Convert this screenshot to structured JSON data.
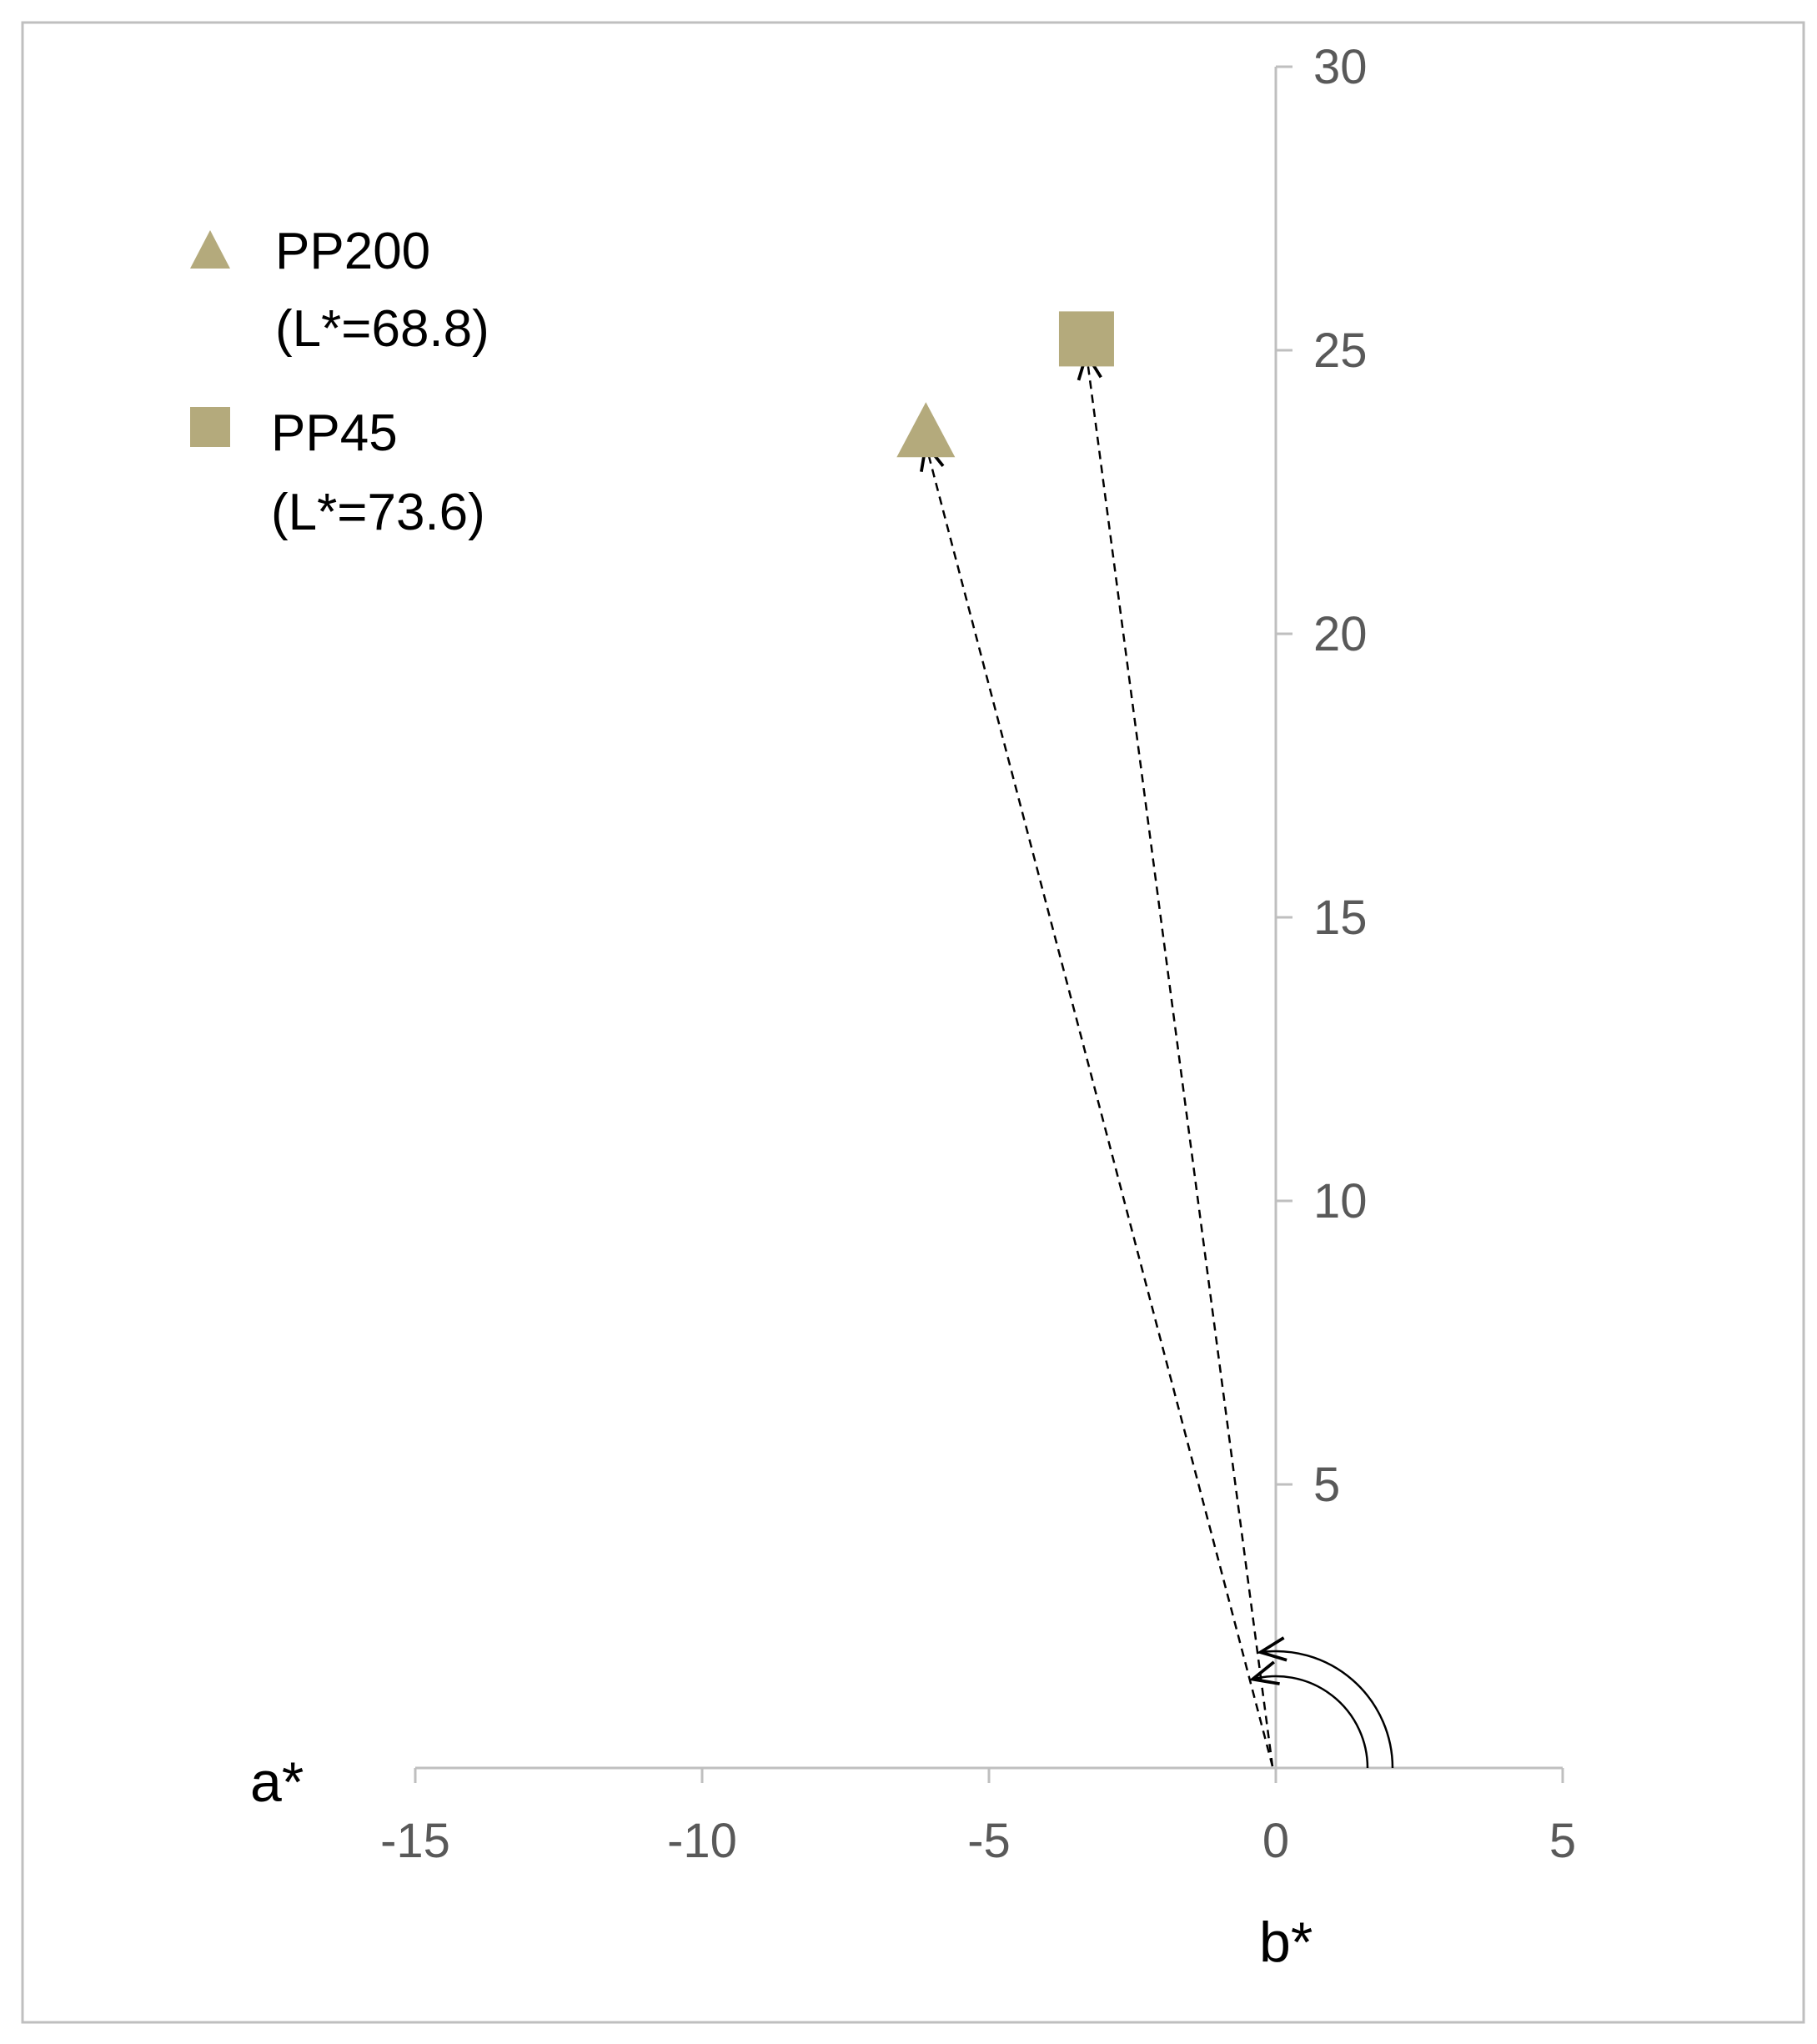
{
  "chart_data": {
    "type": "scatter",
    "title": "",
    "xlabel": "a*",
    "ylabel": "b*",
    "xlim": [
      -15,
      5
    ],
    "ylim": [
      0,
      30
    ],
    "x_ticks": [
      "-15",
      "-10",
      "-5",
      "0",
      "5"
    ],
    "y_ticks": [
      "5",
      "10",
      "15",
      "20",
      "25",
      "30"
    ],
    "grid": false,
    "legend": "top-left",
    "series": [
      {
        "name": "PP200",
        "sub_label": "(L*=68.8)",
        "marker": "triangle",
        "color": "#b4aa7c",
        "points": [
          {
            "x": -6.1,
            "y": 23.6
          }
        ]
      },
      {
        "name": "PP45",
        "sub_label": "(L*=73.6)",
        "marker": "square",
        "color": "#b4aa7c",
        "points": [
          {
            "x": -3.3,
            "y": 25.2
          }
        ]
      }
    ],
    "annotations": [
      {
        "type": "dashed-arrow",
        "from_origin": true,
        "to_series": "PP200"
      },
      {
        "type": "dashed-arrow",
        "from_origin": true,
        "to_series": "PP45"
      },
      {
        "type": "hue-angle-arc",
        "series": "PP200"
      },
      {
        "type": "hue-angle-arc",
        "series": "PP45"
      }
    ]
  }
}
